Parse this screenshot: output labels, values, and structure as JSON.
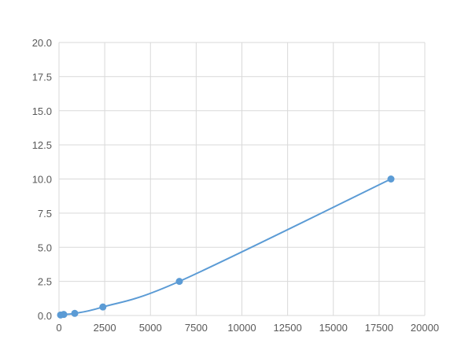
{
  "chart_data": {
    "type": "scatter",
    "title": "",
    "xlabel": "",
    "ylabel": "",
    "xlim": [
      0,
      20000
    ],
    "ylim": [
      0,
      20
    ],
    "x_ticks": [
      "0",
      "2500",
      "5000",
      "7500",
      "10000",
      "12500",
      "15000",
      "17500",
      "20000"
    ],
    "y_ticks": [
      "0.0",
      "2.5",
      "5.0",
      "7.5",
      "10.0",
      "12.5",
      "15.0",
      "17.5",
      "20.0"
    ],
    "grid": true,
    "smooth_line": true,
    "series": [
      {
        "x": [
          86,
          260,
          860,
          2400,
          6580,
          18150
        ],
        "y": [
          0.039,
          0.078,
          0.156,
          0.625,
          2.5,
          10.0
        ]
      }
    ],
    "color": "#5b9bd5",
    "grid_color": "#d9d9d9"
  }
}
